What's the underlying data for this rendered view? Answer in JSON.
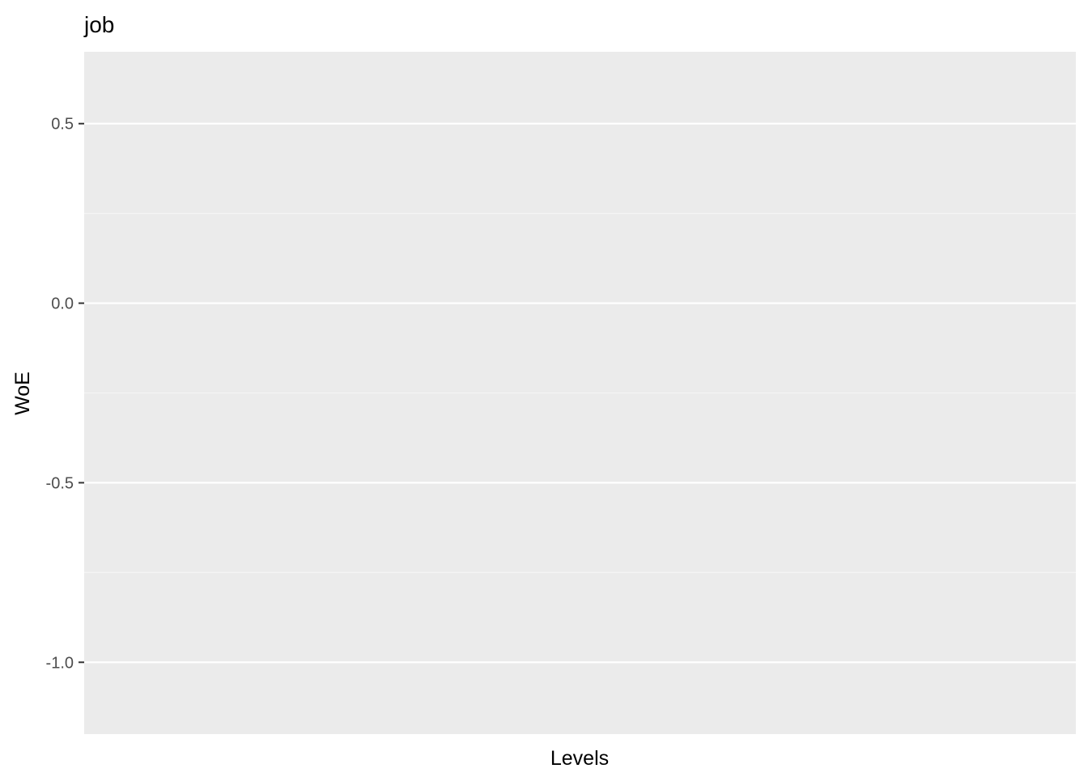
{
  "chart_data": {
    "type": "bar",
    "title": "job",
    "xlabel": "Levels",
    "ylabel": "WoE",
    "categories": [],
    "values": [],
    "ylim": [
      -1.2,
      0.7
    ],
    "y_ticks": [
      {
        "value": 0.5,
        "label": "0.5"
      },
      {
        "value": 0.0,
        "label": "0.0"
      },
      {
        "value": -0.5,
        "label": "-0.5"
      },
      {
        "value": -1.0,
        "label": "-1.0"
      }
    ],
    "y_minor_ticks": [
      0.25,
      -0.25,
      -0.75
    ],
    "grid": true,
    "legend": "none",
    "colors": {
      "panel": "#ebebeb",
      "grid_major": "#ffffff",
      "grid_minor": "#f5f5f5",
      "tick": "#333333",
      "tick_label": "#4d4d4d",
      "text": "#000000"
    }
  }
}
